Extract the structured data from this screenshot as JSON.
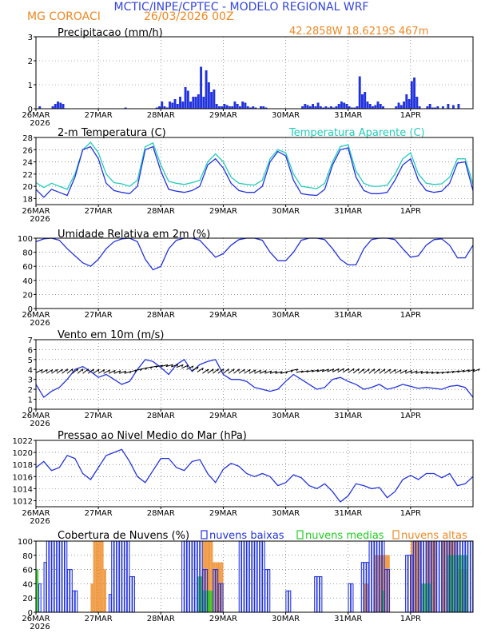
{
  "header": {
    "title": "MCTIC/INPE/CPTEC - MODELO REGIONAL WRF",
    "location": "MG COROACI",
    "date": "26/03/2026 00Z",
    "coords": "42.2858W 18.6219S 467m",
    "colors": {
      "title": "#3344dd",
      "orange": "#ee8822"
    }
  },
  "x_axis": {
    "dates": [
      "26MAR",
      "27MAR",
      "28MAR",
      "29MAR",
      "30MAR",
      "31MAR",
      "1APR"
    ],
    "year": "2026",
    "hours": 168
  },
  "chart_data": [
    {
      "type": "bar",
      "title": "Precipitacao (mm/h)",
      "ylim": [
        0,
        3
      ],
      "yticks": [
        0,
        1,
        2,
        3
      ],
      "color": "#2233dd",
      "x_hours": [
        1,
        6,
        7,
        8,
        9,
        10,
        34,
        46,
        47,
        48,
        49,
        50,
        51,
        52,
        53,
        54,
        55,
        56,
        57,
        58,
        59,
        60,
        61,
        62,
        63,
        64,
        65,
        66,
        67,
        68,
        69,
        70,
        71,
        72,
        73,
        74,
        75,
        76,
        77,
        78,
        79,
        80,
        81,
        82,
        83,
        84,
        86,
        87,
        88,
        102,
        103,
        104,
        105,
        106,
        107,
        108,
        109,
        110,
        111,
        112,
        113,
        114,
        115,
        116,
        117,
        118,
        119,
        120,
        121,
        122,
        123,
        124,
        125,
        126,
        127,
        128,
        129,
        130,
        131,
        132,
        133,
        138,
        139,
        140,
        141,
        142,
        143,
        144,
        145,
        146,
        147,
        150,
        151,
        152,
        153,
        154,
        156,
        158,
        160,
        162
      ],
      "values": [
        0.1,
        0.1,
        0.2,
        0.3,
        0.25,
        0.2,
        0.05,
        0.05,
        0.1,
        0.3,
        0.1,
        0.05,
        0.3,
        0.25,
        0.4,
        0.2,
        0.5,
        0.3,
        0.9,
        0.75,
        0.3,
        0.5,
        0.5,
        0.6,
        1.75,
        0.5,
        1.6,
        1.1,
        0.7,
        0.8,
        0.2,
        0.1,
        0.1,
        0.2,
        0.15,
        0.1,
        0.1,
        0.3,
        0.2,
        0.1,
        0.3,
        0.25,
        0.1,
        0.05,
        0.1,
        0.05,
        0.1,
        0.1,
        0.05,
        0.1,
        0.2,
        0.15,
        0.1,
        0.2,
        0.1,
        0.25,
        0.1,
        0.05,
        0.1,
        0.05,
        0.1,
        0.05,
        0.1,
        0.2,
        0.3,
        0.25,
        0.2,
        0.1,
        0.05,
        0.05,
        0.1,
        1.35,
        0.6,
        0.7,
        0.3,
        0.2,
        0.1,
        0.15,
        0.3,
        0.2,
        0.1,
        0.1,
        0.25,
        0.15,
        0.3,
        0.6,
        0.4,
        1.15,
        1.3,
        0.5,
        0.1,
        0.1,
        0.2,
        0.05,
        0.05,
        0.1,
        0.1,
        0.2,
        0.15,
        0.2
      ]
    },
    {
      "type": "line",
      "title": "2-m Temperatura (C)",
      "legend": "Temperatura Aparente (C)",
      "ylim": [
        17,
        28
      ],
      "yticks": [
        18,
        20,
        22,
        24,
        26,
        28
      ],
      "series": [
        {
          "name": "Temperatura Aparente (C)",
          "color": "#22ccbb",
          "x": [
            0,
            3,
            6,
            9,
            12,
            15,
            18,
            21,
            24,
            27,
            30,
            33,
            36,
            39,
            42,
            45,
            48,
            51,
            54,
            57,
            60,
            63,
            66,
            69,
            72,
            75,
            78,
            81,
            84,
            87,
            90,
            93,
            96,
            99,
            102,
            105,
            108,
            111,
            114,
            117,
            120,
            123,
            126,
            129,
            132,
            135,
            138,
            141,
            144,
            147,
            150,
            153,
            156,
            159,
            162,
            165,
            168
          ],
          "values": [
            20.6,
            19.8,
            20.5,
            20.0,
            19.5,
            22.0,
            26.0,
            27.2,
            25.5,
            22.0,
            20.6,
            20.4,
            20.0,
            21.0,
            26.5,
            27.1,
            23.5,
            20.8,
            20.5,
            20.3,
            20.6,
            21.0,
            24.0,
            25.3,
            24.0,
            21.5,
            20.5,
            20.3,
            20.2,
            21.0,
            24.5,
            26.0,
            25.5,
            22.0,
            20.0,
            19.8,
            19.6,
            20.5,
            24.0,
            26.5,
            26.8,
            22.5,
            20.5,
            20.0,
            20.0,
            20.2,
            22.0,
            24.5,
            25.5,
            22.0,
            20.5,
            20.3,
            20.4,
            21.5,
            24.5,
            24.5,
            20.3
          ]
        },
        {
          "name": "2-m Temperatura (C)",
          "color": "#2233dd",
          "x": [
            0,
            3,
            6,
            9,
            12,
            15,
            18,
            21,
            24,
            27,
            30,
            33,
            36,
            39,
            42,
            45,
            48,
            51,
            54,
            57,
            60,
            63,
            66,
            69,
            72,
            75,
            78,
            81,
            84,
            87,
            90,
            93,
            96,
            99,
            102,
            105,
            108,
            111,
            114,
            117,
            120,
            123,
            126,
            129,
            132,
            135,
            138,
            141,
            144,
            147,
            150,
            153,
            156,
            159,
            162,
            165,
            168
          ],
          "values": [
            19.5,
            18.2,
            19.5,
            19.0,
            18.5,
            21.5,
            26.0,
            26.5,
            24.5,
            20.5,
            19.3,
            19.0,
            18.8,
            20.0,
            26.0,
            26.5,
            22.5,
            19.5,
            19.2,
            19.0,
            19.3,
            20.0,
            23.5,
            24.5,
            23.0,
            20.5,
            19.3,
            19.0,
            19.0,
            20.0,
            24.0,
            25.7,
            25.0,
            21.0,
            18.8,
            18.6,
            18.5,
            19.5,
            23.5,
            26.0,
            26.3,
            21.5,
            19.3,
            18.8,
            18.8,
            19.0,
            21.0,
            23.5,
            24.5,
            21.0,
            19.3,
            19.0,
            19.2,
            20.5,
            23.8,
            24.0,
            19.3
          ]
        }
      ]
    },
    {
      "type": "line",
      "title": "Umidade Relativa em 2m (%)",
      "ylim": [
        0,
        100
      ],
      "yticks": [
        0,
        20,
        40,
        60,
        80,
        100
      ],
      "color": "#2233dd",
      "x": [
        0,
        3,
        6,
        9,
        12,
        15,
        18,
        21,
        24,
        27,
        30,
        33,
        36,
        39,
        42,
        45,
        48,
        51,
        54,
        57,
        60,
        63,
        66,
        69,
        72,
        75,
        78,
        81,
        84,
        87,
        90,
        93,
        96,
        99,
        102,
        105,
        108,
        111,
        114,
        117,
        120,
        123,
        126,
        129,
        132,
        135,
        138,
        141,
        144,
        147,
        150,
        153,
        156,
        159,
        162,
        165,
        168
      ],
      "values": [
        95,
        99,
        100,
        97,
        85,
        75,
        65,
        60,
        70,
        85,
        95,
        99,
        100,
        95,
        70,
        55,
        60,
        85,
        97,
        100,
        100,
        97,
        85,
        73,
        78,
        90,
        98,
        100,
        100,
        97,
        80,
        68,
        68,
        80,
        97,
        100,
        100,
        98,
        85,
        70,
        62,
        62,
        85,
        98,
        100,
        100,
        98,
        85,
        73,
        75,
        90,
        98,
        99,
        90,
        72,
        72,
        90
      ]
    },
    {
      "type": "line",
      "title": "Vento em 10m (m/s)",
      "ylim": [
        0,
        7
      ],
      "yticks": [
        0,
        1,
        2,
        3,
        4,
        5,
        6,
        7
      ],
      "color": "#2233dd",
      "x": [
        0,
        3,
        6,
        9,
        12,
        15,
        18,
        21,
        24,
        27,
        30,
        33,
        36,
        39,
        42,
        45,
        48,
        51,
        54,
        57,
        60,
        63,
        66,
        69,
        72,
        75,
        78,
        81,
        84,
        87,
        90,
        93,
        96,
        99,
        102,
        105,
        108,
        111,
        114,
        117,
        120,
        123,
        126,
        129,
        132,
        135,
        138,
        141,
        144,
        147,
        150,
        153,
        156,
        159,
        162,
        165,
        168
      ],
      "values": [
        2.5,
        1.2,
        1.8,
        2.2,
        3.0,
        4.0,
        4.3,
        3.8,
        3.2,
        3.5,
        3.0,
        2.5,
        2.8,
        4.0,
        5.0,
        4.8,
        4.2,
        3.5,
        4.5,
        5.0,
        3.8,
        4.5,
        4.8,
        5.0,
        3.5,
        3.0,
        3.0,
        2.8,
        2.2,
        2.0,
        1.8,
        2.0,
        2.8,
        3.5,
        3.0,
        2.5,
        2.0,
        2.2,
        3.0,
        3.2,
        2.8,
        2.5,
        2.0,
        2.2,
        2.5,
        2.0,
        2.2,
        2.5,
        2.3,
        2.1,
        2.2,
        2.1,
        2.0,
        2.3,
        2.4,
        2.2,
        1.2
      ],
      "arrows": "wind direction arrows"
    },
    {
      "type": "line",
      "title": "Pressao ao Nivel Medio do Mar (hPa)",
      "ylim": [
        1011,
        1022
      ],
      "yticks": [
        1012,
        1014,
        1016,
        1018,
        1020,
        1022
      ],
      "color": "#2233dd",
      "x": [
        0,
        3,
        6,
        9,
        12,
        15,
        18,
        21,
        24,
        27,
        30,
        33,
        36,
        39,
        42,
        45,
        48,
        51,
        54,
        57,
        60,
        63,
        66,
        69,
        72,
        75,
        78,
        81,
        84,
        87,
        90,
        93,
        96,
        99,
        102,
        105,
        108,
        111,
        114,
        117,
        120,
        123,
        126,
        129,
        132,
        135,
        138,
        141,
        144,
        147,
        150,
        153,
        156,
        159,
        162,
        165,
        168
      ],
      "values": [
        1017.5,
        1018.5,
        1017.0,
        1017.5,
        1019.5,
        1019.0,
        1016.5,
        1015.5,
        1017.5,
        1019.5,
        1020.0,
        1020.5,
        1018.5,
        1016.0,
        1015.0,
        1017.0,
        1019.0,
        1019.0,
        1017.5,
        1017.0,
        1018.5,
        1018.8,
        1016.5,
        1015.0,
        1017.2,
        1018.2,
        1017.7,
        1016.5,
        1016.0,
        1016.5,
        1016.0,
        1014.5,
        1015.0,
        1016.3,
        1015.8,
        1014.5,
        1014.0,
        1014.8,
        1013.5,
        1011.8,
        1012.8,
        1014.8,
        1014.5,
        1014.0,
        1014.2,
        1012.5,
        1013.5,
        1015.5,
        1016.2,
        1015.5,
        1016.5,
        1016.5,
        1015.8,
        1016.5,
        1014.5,
        1014.8,
        1016.0
      ]
    },
    {
      "type": "bar",
      "title": "Cobertura de Nuvens (%)",
      "ylim": [
        0,
        100
      ],
      "yticks": [
        0,
        20,
        40,
        60,
        80,
        100
      ],
      "legend": [
        "nuvens baixas",
        "nuvens medias",
        "nuvens altas"
      ],
      "series": [
        {
          "name": "nuvens baixas",
          "color": "#2233dd",
          "ranges": [
            [
              1,
              2,
              40
            ],
            [
              3,
              4,
              70
            ],
            [
              4,
              12,
              100
            ],
            [
              12,
              14,
              60
            ],
            [
              14,
              16,
              30
            ],
            [
              28,
              29,
              25
            ],
            [
              29,
              36,
              100
            ],
            [
              36,
              38,
              50
            ],
            [
              56,
              64,
              100
            ],
            [
              64,
              66,
              60
            ],
            [
              68,
              70,
              60
            ],
            [
              70,
              72,
              40
            ],
            [
              78,
              88,
              100
            ],
            [
              88,
              90,
              60
            ],
            [
              96,
              98,
              30
            ],
            [
              107,
              110,
              50
            ],
            [
              120,
              122,
              40
            ],
            [
              125,
              128,
              70
            ],
            [
              128,
              134,
              100
            ],
            [
              134,
              136,
              60
            ],
            [
              142,
              145,
              80
            ],
            [
              145,
              168,
              100
            ]
          ]
        },
        {
          "name": "nuvens medias",
          "color": "#22cc22",
          "ranges": [
            [
              0,
              1,
              60
            ],
            [
              62,
              64,
              50
            ],
            [
              64,
              68,
              30
            ],
            [
              133,
              134,
              30
            ],
            [
              148,
              152,
              40
            ],
            [
              158,
              166,
              80
            ]
          ]
        },
        {
          "name": "nuvens altas",
          "color": "#ee8822",
          "ranges": [
            [
              21,
              22,
              40
            ],
            [
              22,
              26,
              100
            ],
            [
              26,
              27,
              60
            ],
            [
              64,
              68,
              100
            ],
            [
              68,
              72,
              70
            ],
            [
              126,
              128,
              40
            ],
            [
              130,
              136,
              80
            ],
            [
              144,
              148,
              100
            ],
            [
              150,
              154,
              100
            ],
            [
              156,
              162,
              100
            ],
            [
              162,
              166,
              60
            ]
          ]
        }
      ]
    }
  ]
}
